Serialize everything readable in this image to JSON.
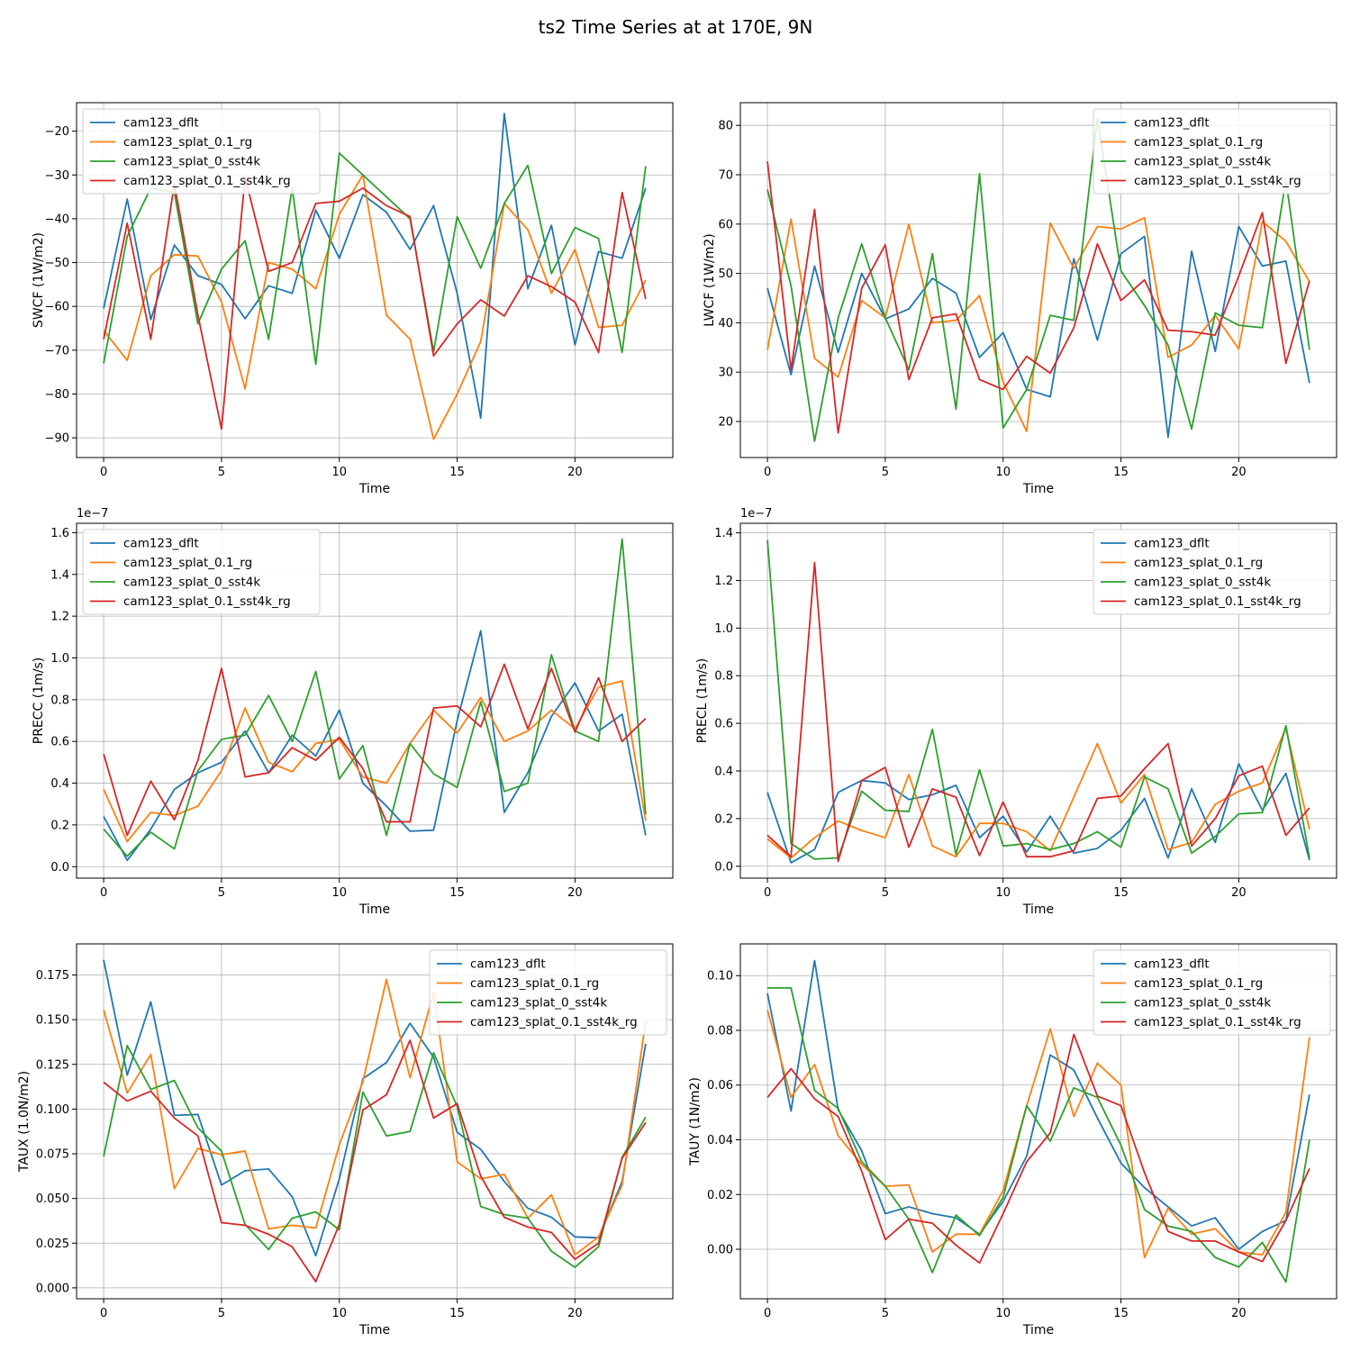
{
  "chart_data": {
    "type": "line",
    "title": "ts2 Time Series at at 170E, 9N",
    "colors": {
      "cam123_dflt": "#1f77b4",
      "cam123_splat_0.1_rg": "#ff7f0e",
      "cam123_splat_0_sst4k": "#2ca02c",
      "cam123_splat_0.1_sst4k_rg": "#d62728",
      "grid": "#b0b0b0"
    },
    "x": [
      0,
      1,
      2,
      3,
      4,
      5,
      6,
      7,
      8,
      9,
      10,
      11,
      12,
      13,
      14,
      15,
      16,
      17,
      18,
      19,
      20,
      21,
      22,
      23
    ],
    "panels": [
      {
        "id": "swcf",
        "ylabel": "SWCF (1W/m2)",
        "xlabel": "Time",
        "ylim": [
          -94.5,
          -13.5
        ],
        "yticks": [
          -20,
          -30,
          -40,
          -50,
          -60,
          -70,
          -80,
          -90
        ],
        "yticklabels": [
          "−20",
          "−30",
          "−40",
          "−50",
          "−60",
          "−70",
          "−80",
          "−90"
        ],
        "xticks": [
          0,
          5,
          10,
          15,
          20
        ],
        "xticklabels": [
          "0",
          "5",
          "10",
          "15",
          "20"
        ],
        "legend_loc": "upper left",
        "series": [
          {
            "name": "cam123_dflt",
            "values": [
              -60.5,
              -35.5,
              -63,
              -46,
              -53,
              -55,
              -62.8,
              -55.3,
              -57,
              -38,
              -49,
              -34.5,
              -38.5,
              -47,
              -37,
              -57,
              -85.5,
              -16,
              -56,
              -41.5,
              -68.8,
              -47.5,
              -49,
              -33
            ]
          },
          {
            "name": "cam123_splat_0.1_rg",
            "values": [
              -65.5,
              -72.3,
              -53,
              -48.2,
              -48.5,
              -59,
              -78.8,
              -50,
              -51.5,
              -56,
              -39,
              -30,
              -62,
              -67.5,
              -90.3,
              -80,
              -68,
              -36.5,
              -42.5,
              -57,
              -47,
              -64.8,
              -64.3,
              -54
            ]
          },
          {
            "name": "cam123_splat_0_sst4k",
            "values": [
              -73,
              -44,
              -33,
              -34,
              -64,
              -51.5,
              -45,
              -67.5,
              -33,
              -73.2,
              -25,
              -30,
              -35,
              -40,
              -70.3,
              -39.5,
              -51.3,
              -36.5,
              -27.8,
              -52.5,
              -42,
              -44.5,
              -70.5,
              -28
            ]
          },
          {
            "name": "cam123_splat_0.1_sst4k_rg",
            "values": [
              -67.5,
              -41,
              -67.5,
              -32,
              -62,
              -88,
              -30.5,
              -52,
              -50,
              -36.5,
              -36,
              -33,
              -37,
              -39.5,
              -71.3,
              -64,
              -58.5,
              -62.2,
              -53,
              -55.5,
              -59,
              -70.5,
              -34,
              -58.3
            ]
          }
        ]
      },
      {
        "id": "lwcf",
        "ylabel": "LWCF (1W/m2)",
        "xlabel": "Time",
        "ylim": [
          12.7,
          84.6
        ],
        "yticks": [
          20,
          30,
          40,
          50,
          60,
          70,
          80
        ],
        "yticklabels": [
          "20",
          "30",
          "40",
          "50",
          "60",
          "70",
          "80"
        ],
        "xticks": [
          0,
          5,
          10,
          15,
          20
        ],
        "xticklabels": [
          "0",
          "5",
          "10",
          "15",
          "20"
        ],
        "legend_loc": "upper right",
        "series": [
          {
            "name": "cam123_dflt",
            "values": [
              47,
              29.5,
              51.5,
              34,
              50,
              40.8,
              42.8,
              49,
              46,
              33,
              38,
              26.5,
              25,
              53,
              36.5,
              54,
              57.5,
              16.8,
              54.5,
              34.2,
              59.5,
              51.5,
              52.5,
              27.8
            ]
          },
          {
            "name": "cam123_splat_0.1_rg",
            "values": [
              34.5,
              61,
              32.8,
              29,
              44.5,
              41,
              60,
              40,
              40.5,
              45.5,
              28,
              18,
              60.2,
              51,
              59.5,
              59,
              61.3,
              33,
              35.5,
              41.5,
              34.7,
              60.5,
              56.5,
              48.3
            ]
          },
          {
            "name": "cam123_splat_0_sst4k",
            "values": [
              67,
              47.5,
              16,
              41,
              56,
              41,
              30.5,
              54,
              22.5,
              70.2,
              18.7,
              26.5,
              41.5,
              40.5,
              81.5,
              50.5,
              43.5,
              35.5,
              18.5,
              42,
              39.5,
              39,
              69,
              34.5
            ]
          },
          {
            "name": "cam123_splat_0.1_sst4k_rg",
            "values": [
              72.7,
              30.5,
              63,
              17.7,
              47,
              55.8,
              28.5,
              41,
              41.8,
              28.5,
              26.5,
              33.2,
              29.8,
              39,
              56,
              44.5,
              48.7,
              38.5,
              38.2,
              37.5,
              49.5,
              62.3,
              31.8,
              48.5
            ]
          }
        ]
      },
      {
        "id": "precc",
        "ylabel": "PRECC (1m/s)",
        "xlabel": "Time",
        "offset_label": "1e−7",
        "ylim": [
          -0.055,
          1.645
        ],
        "yticks": [
          0,
          0.2,
          0.4,
          0.6,
          0.8,
          1.0,
          1.2,
          1.4,
          1.6
        ],
        "yticklabels": [
          "0.0",
          "0.2",
          "0.4",
          "0.6",
          "0.8",
          "1.0",
          "1.2",
          "1.4",
          "1.6"
        ],
        "xticks": [
          0,
          5,
          10,
          15,
          20
        ],
        "xticklabels": [
          "0",
          "5",
          "10",
          "15",
          "20"
        ],
        "legend_loc": "upper left",
        "series": [
          {
            "name": "cam123_dflt",
            "values": [
              0.24,
              0.03,
              0.18,
              0.37,
              0.45,
              0.5,
              0.65,
              0.45,
              0.63,
              0.53,
              0.75,
              0.4,
              0.29,
              0.17,
              0.175,
              0.7,
              1.13,
              0.26,
              0.45,
              0.72,
              0.88,
              0.65,
              0.73,
              0.15
            ]
          },
          {
            "name": "cam123_splat_0.1_rg",
            "values": [
              0.37,
              0.12,
              0.26,
              0.245,
              0.29,
              0.46,
              0.76,
              0.5,
              0.455,
              0.59,
              0.61,
              0.43,
              0.4,
              0.59,
              0.75,
              0.64,
              0.81,
              0.6,
              0.65,
              0.75,
              0.66,
              0.86,
              0.89,
              0.22
            ]
          },
          {
            "name": "cam123_splat_0_sst4k",
            "values": [
              0.18,
              0.05,
              0.165,
              0.085,
              0.46,
              0.61,
              0.63,
              0.82,
              0.6,
              0.935,
              0.42,
              0.58,
              0.15,
              0.59,
              0.445,
              0.38,
              0.79,
              0.36,
              0.4,
              1.015,
              0.65,
              0.6,
              1.57,
              0.25
            ]
          },
          {
            "name": "cam123_splat_0.1_sst4k_rg",
            "values": [
              0.54,
              0.15,
              0.41,
              0.225,
              0.51,
              0.95,
              0.43,
              0.45,
              0.57,
              0.51,
              0.62,
              0.47,
              0.215,
              0.215,
              0.76,
              0.77,
              0.67,
              0.97,
              0.66,
              0.95,
              0.645,
              0.905,
              0.6,
              0.71
            ]
          }
        ]
      },
      {
        "id": "precl",
        "ylabel": "PRECL (1m/s)",
        "xlabel": "Time",
        "offset_label": "1e−7",
        "ylim": [
          -0.05,
          1.44
        ],
        "yticks": [
          0,
          0.2,
          0.4,
          0.6,
          0.8,
          1.0,
          1.2,
          1.4
        ],
        "yticklabels": [
          "0.0",
          "0.2",
          "0.4",
          "0.6",
          "0.8",
          "1.0",
          "1.2",
          "1.4"
        ],
        "xticks": [
          0,
          5,
          10,
          15,
          20
        ],
        "xticklabels": [
          "0",
          "5",
          "10",
          "15",
          "20"
        ],
        "legend_loc": "upper right",
        "series": [
          {
            "name": "cam123_dflt",
            "values": [
              0.31,
              0.015,
              0.07,
              0.31,
              0.36,
              0.35,
              0.28,
              0.3,
              0.34,
              0.12,
              0.21,
              0.06,
              0.21,
              0.055,
              0.075,
              0.15,
              0.285,
              0.035,
              0.325,
              0.1,
              0.43,
              0.235,
              0.39,
              0.025
            ]
          },
          {
            "name": "cam123_splat_0.1_rg",
            "values": [
              0.115,
              0.035,
              0.12,
              0.19,
              0.15,
              0.12,
              0.385,
              0.085,
              0.04,
              0.18,
              0.18,
              0.145,
              0.065,
              0.29,
              0.515,
              0.265,
              0.385,
              0.07,
              0.1,
              0.26,
              0.315,
              0.35,
              0.58,
              0.155
            ]
          },
          {
            "name": "cam123_splat_0_sst4k",
            "values": [
              1.37,
              0.095,
              0.03,
              0.035,
              0.315,
              0.235,
              0.23,
              0.575,
              0.05,
              0.405,
              0.085,
              0.095,
              0.07,
              0.095,
              0.145,
              0.08,
              0.375,
              0.325,
              0.055,
              0.125,
              0.22,
              0.225,
              0.59,
              0.035
            ]
          },
          {
            "name": "cam123_splat_0.1_sst4k_rg",
            "values": [
              0.13,
              0.04,
              1.275,
              0.02,
              0.36,
              0.415,
              0.08,
              0.325,
              0.29,
              0.045,
              0.27,
              0.04,
              0.04,
              0.065,
              0.285,
              0.295,
              0.41,
              0.515,
              0.085,
              0.2,
              0.38,
              0.42,
              0.13,
              0.245
            ]
          }
        ]
      },
      {
        "id": "taux",
        "ylabel": "TAUX (1.0N/m2)",
        "xlabel": "Time",
        "ylim": [
          -0.0061,
          0.1924
        ],
        "yticks": [
          0,
          0.025,
          0.05,
          0.075,
          0.1,
          0.125,
          0.15,
          0.175
        ],
        "yticklabels": [
          "0.000",
          "0.025",
          "0.050",
          "0.075",
          "0.100",
          "0.125",
          "0.150",
          "0.175"
        ],
        "xticks": [
          0,
          5,
          10,
          15,
          20
        ],
        "xticklabels": [
          "0",
          "5",
          "10",
          "15",
          "20"
        ],
        "legend_loc": "upper right",
        "series": [
          {
            "name": "cam123_dflt",
            "values": [
              0.1835,
              0.119,
              0.16,
              0.0965,
              0.097,
              0.0575,
              0.0655,
              0.0665,
              0.051,
              0.018,
              0.061,
              0.117,
              0.126,
              0.148,
              0.129,
              0.087,
              0.0775,
              0.0595,
              0.0445,
              0.0395,
              0.0285,
              0.028,
              0.0595,
              0.1365
            ]
          },
          {
            "name": "cam123_splat_0.1_rg",
            "values": [
              0.1555,
              0.109,
              0.1305,
              0.0555,
              0.078,
              0.0745,
              0.0765,
              0.033,
              0.035,
              0.0335,
              0.08,
              0.1155,
              0.1725,
              0.1175,
              0.165,
              0.0705,
              0.061,
              0.0635,
              0.039,
              0.052,
              0.0185,
              0.0285,
              0.0575,
              0.149
            ]
          },
          {
            "name": "cam123_splat_0_sst4k",
            "values": [
              0.0735,
              0.1355,
              0.111,
              0.116,
              0.0895,
              0.0765,
              0.0355,
              0.0215,
              0.039,
              0.0425,
              0.0325,
              0.1095,
              0.085,
              0.0875,
              0.1315,
              0.1015,
              0.0455,
              0.041,
              0.039,
              0.0205,
              0.0115,
              0.023,
              0.073,
              0.0955
            ]
          },
          {
            "name": "cam123_splat_0.1_sst4k_rg",
            "values": [
              0.115,
              0.1045,
              0.11,
              0.095,
              0.085,
              0.0365,
              0.035,
              0.03,
              0.023,
              0.0035,
              0.0355,
              0.0995,
              0.108,
              0.1385,
              0.095,
              0.103,
              0.0625,
              0.0395,
              0.034,
              0.031,
              0.016,
              0.025,
              0.0725,
              0.0925
            ]
          }
        ]
      },
      {
        "id": "tauy",
        "ylabel": "TAUY (1N/m2)",
        "xlabel": "Time",
        "ylim": [
          -0.0181,
          0.1116
        ],
        "yticks": [
          0,
          0.02,
          0.04,
          0.06,
          0.08,
          0.1
        ],
        "yticklabels": [
          "0.00",
          "0.02",
          "0.04",
          "0.06",
          "0.08",
          "0.10"
        ],
        "xticks": [
          0,
          5,
          10,
          15,
          20
        ],
        "xticklabels": [
          "0",
          "5",
          "10",
          "15",
          "20"
        ],
        "legend_loc": "upper right",
        "series": [
          {
            "name": "cam123_dflt",
            "values": [
              0.0935,
              0.0505,
              0.1055,
              0.051,
              0.036,
              0.013,
              0.0155,
              0.013,
              0.0115,
              0.0055,
              0.0175,
              0.034,
              0.071,
              0.0655,
              0.048,
              0.0315,
              0.0225,
              0.0155,
              0.0085,
              0.0115,
              0.0,
              0.0065,
              0.0105,
              0.0565
            ]
          },
          {
            "name": "cam123_splat_0.1_rg",
            "values": [
              0.0875,
              0.0555,
              0.0675,
              0.0415,
              0.031,
              0.023,
              0.0235,
              -0.001,
              0.0055,
              0.0055,
              0.0215,
              0.0525,
              0.0805,
              0.0485,
              0.068,
              0.06,
              -0.003,
              0.015,
              0.0055,
              0.0075,
              -0.001,
              -0.002,
              0.0135,
              0.0775
            ]
          },
          {
            "name": "cam123_splat_0_sst4k",
            "values": [
              0.0955,
              0.0955,
              0.058,
              0.0515,
              0.032,
              0.023,
              0.011,
              -0.0085,
              0.0125,
              0.005,
              0.019,
              0.0525,
              0.0395,
              0.059,
              0.0555,
              0.038,
              0.0145,
              0.0085,
              0.0065,
              -0.003,
              -0.0065,
              0.0025,
              -0.012,
              0.04
            ]
          },
          {
            "name": "cam123_splat_0.1_sst4k_rg",
            "values": [
              0.0555,
              0.066,
              0.055,
              0.0485,
              0.0285,
              0.0035,
              0.011,
              0.0095,
              0.0015,
              -0.005,
              0.013,
              0.032,
              0.0425,
              0.0785,
              0.056,
              0.0525,
              0.028,
              0.0065,
              0.003,
              0.003,
              -0.001,
              -0.0045,
              0.0105,
              0.0295
            ]
          }
        ]
      }
    ]
  }
}
